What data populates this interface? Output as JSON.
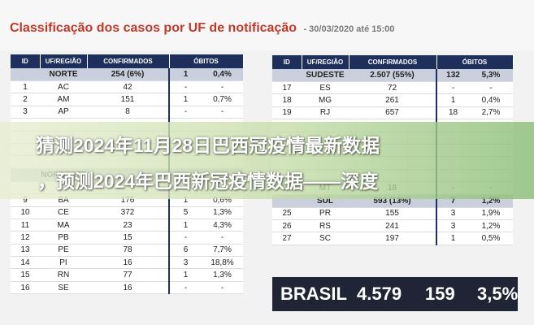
{
  "header": {
    "title": "Classificação dos casos por UF de notificação",
    "date": "- 30/03/2020 até 15:00"
  },
  "columns": {
    "id": "ID",
    "uf": "UF/REGIÃO",
    "confirmed": "CONFIRMADOS",
    "deaths": "ÓBITOS"
  },
  "left_table": [
    {
      "region": true,
      "id": "",
      "uf": "NORTE",
      "conf": "254 (6%)",
      "deaths": "1",
      "pct": "0,4%"
    },
    {
      "id": "1",
      "uf": "AC",
      "conf": "42",
      "deaths": "-",
      "pct": "-"
    },
    {
      "id": "2",
      "uf": "AM",
      "conf": "151",
      "deaths": "1",
      "pct": "0,7%"
    },
    {
      "id": "3",
      "uf": "AP",
      "conf": "8",
      "deaths": "-",
      "pct": "-"
    },
    {
      "id": "",
      "uf": "",
      "conf": "",
      "deaths": "",
      "pct": ""
    },
    {
      "id": "",
      "uf": "",
      "conf": "",
      "deaths": "",
      "pct": ""
    },
    {
      "id": "",
      "uf": "",
      "conf": "",
      "deaths": "",
      "pct": ""
    },
    {
      "id": "",
      "uf": "",
      "conf": "",
      "deaths": "",
      "pct": ""
    },
    {
      "region": true,
      "id": "",
      "uf": "NORDESTE",
      "conf": "",
      "deaths": "",
      "pct": ""
    },
    {
      "id": "",
      "uf": "",
      "conf": "",
      "deaths": "",
      "pct": ""
    },
    {
      "id": "9",
      "uf": "BA",
      "conf": "176",
      "deaths": "1",
      "pct": "0,6%"
    },
    {
      "id": "10",
      "uf": "CE",
      "conf": "372",
      "deaths": "5",
      "pct": "1,3%"
    },
    {
      "id": "11",
      "uf": "MA",
      "conf": "23",
      "deaths": "1",
      "pct": "4,3%"
    },
    {
      "id": "12",
      "uf": "PB",
      "conf": "15",
      "deaths": "-",
      "pct": "-"
    },
    {
      "id": "13",
      "uf": "PE",
      "conf": "78",
      "deaths": "6",
      "pct": "7,7%"
    },
    {
      "id": "14",
      "uf": "PI",
      "conf": "16",
      "deaths": "3",
      "pct": "18,8%"
    },
    {
      "id": "15",
      "uf": "RN",
      "conf": "77",
      "deaths": "1",
      "pct": "1,3%"
    },
    {
      "id": "16",
      "uf": "SE",
      "conf": "16",
      "deaths": "-",
      "pct": "-"
    }
  ],
  "right_table": [
    {
      "region": true,
      "id": "",
      "uf": "SUDESTE",
      "conf": "2.507 (55%)",
      "deaths": "132",
      "pct": "5,3%"
    },
    {
      "id": "17",
      "uf": "ES",
      "conf": "72",
      "deaths": "-",
      "pct": "-"
    },
    {
      "id": "18",
      "uf": "MG",
      "conf": "261",
      "deaths": "1",
      "pct": "0,4%"
    },
    {
      "id": "19",
      "uf": "RJ",
      "conf": "657",
      "deaths": "18",
      "pct": "2,7%"
    },
    {
      "id": "",
      "uf": "",
      "conf": "",
      "deaths": "",
      "pct": ""
    },
    {
      "id": "",
      "uf": "",
      "conf": "",
      "deaths": "",
      "pct": ""
    },
    {
      "id": "",
      "uf": "",
      "conf": "",
      "deaths": "",
      "pct": ""
    },
    {
      "id": "",
      "uf": "",
      "conf": "",
      "deaths": "",
      "pct": ""
    },
    {
      "id": "",
      "uf": "",
      "conf": "",
      "deaths": "",
      "pct": ""
    },
    {
      "id": "24",
      "uf": "MT",
      "conf": "18",
      "deaths": "-",
      "pct": "-"
    },
    {
      "region": true,
      "id": "",
      "uf": "SUL",
      "conf": "593 (13%)",
      "deaths": "7",
      "pct": "1,2%"
    },
    {
      "id": "25",
      "uf": "PR",
      "conf": "155",
      "deaths": "3",
      "pct": "1,9%"
    },
    {
      "id": "26",
      "uf": "RS",
      "conf": "241",
      "deaths": "3",
      "pct": "1,2%"
    },
    {
      "id": "27",
      "uf": "SC",
      "conf": "197",
      "deaths": "1",
      "pct": "0,5%"
    }
  ],
  "brasil": {
    "label": "BRASIL",
    "conf": "4.579",
    "deaths": "159",
    "pct": "3,5%"
  },
  "overlay": {
    "line1": "猜测2024年11月28日巴西冠疫情最新数据",
    "line2": "，预测2024年巴西新冠疫情数据——深度"
  },
  "colors": {
    "header_bg": "#1d2f5a",
    "region_bg": "#c9cfdc",
    "title": "#c0392b",
    "total_bg": "#1f2534"
  }
}
